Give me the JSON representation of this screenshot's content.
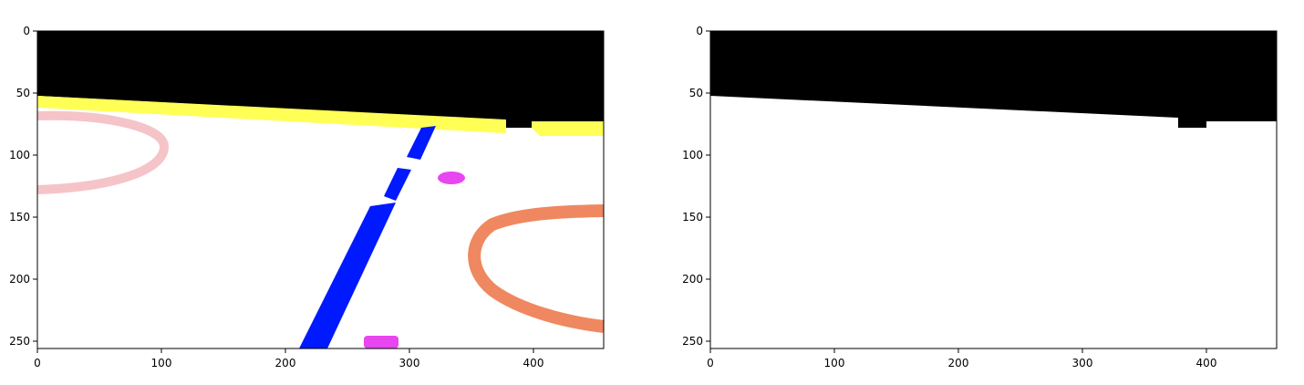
{
  "panels": [
    {
      "id": "segmentation",
      "x_ticks": [
        "0",
        "100",
        "200",
        "300",
        "400"
      ],
      "y_ticks": [
        "0",
        "50",
        "100",
        "150",
        "200",
        "250"
      ],
      "colors": {
        "background": "#ffffff",
        "sky": "#000000",
        "yellow_band": "#ffff55",
        "blue_stripe": "#0019ff",
        "pink_arc": "#f5c4c8",
        "orange_arc": "#ef8860",
        "magenta_patch": "#e846f0"
      }
    },
    {
      "id": "binary-mask",
      "x_ticks": [
        "0",
        "100",
        "200",
        "300",
        "400"
      ],
      "y_ticks": [
        "0",
        "50",
        "100",
        "150",
        "200",
        "250"
      ],
      "colors": {
        "background": "#ffffff",
        "sky": "#000000"
      }
    }
  ]
}
